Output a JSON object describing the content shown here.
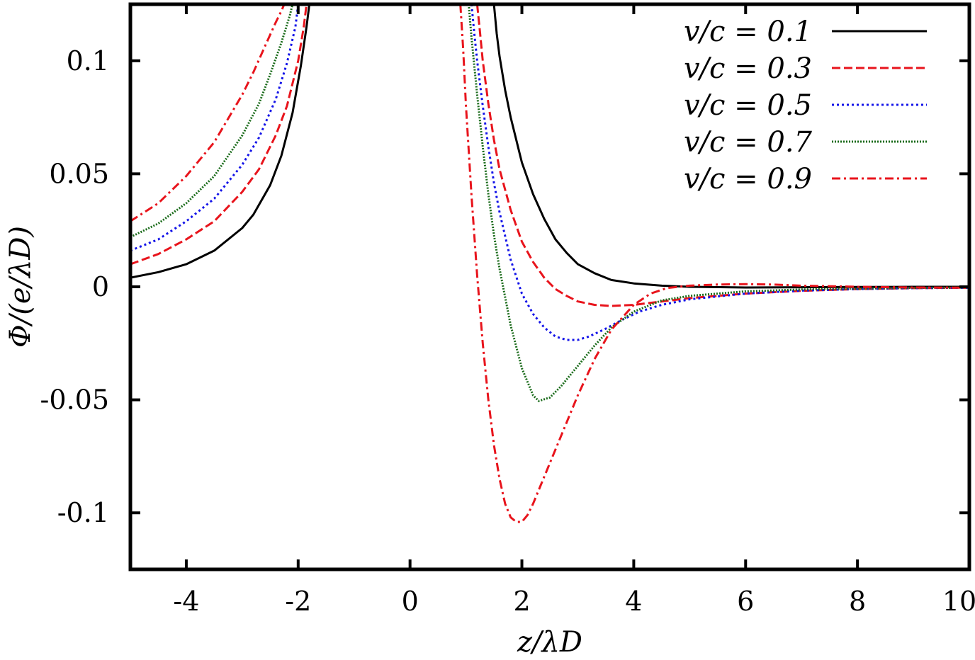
{
  "chart_data": {
    "type": "line",
    "title": "",
    "xlabel": "z/λD",
    "ylabel": "Φ/(e/λD)",
    "xlim": [
      -5,
      10
    ],
    "ylim": [
      -0.125,
      0.125
    ],
    "xticks": [
      -4,
      -2,
      0,
      2,
      4,
      6,
      8,
      10
    ],
    "xtick_labels": [
      "-4",
      "-2",
      "0",
      "2",
      "4",
      "6",
      "8",
      "10"
    ],
    "yticks": [
      0.1,
      0.05,
      0,
      -0.05,
      -0.1
    ],
    "ytick_labels": [
      "0.1",
      "0.05",
      "0",
      "-0.05",
      "-0.1"
    ],
    "grid": false,
    "legend_position": "top-right",
    "series": [
      {
        "name": "v/c = 0.1",
        "color": "#000000",
        "dash": "solid",
        "x": [
          -5.0,
          -4.5,
          -4.0,
          -3.5,
          -3.0,
          -2.8,
          -2.5,
          -2.3,
          -2.1,
          -1.95,
          -1.85,
          -1.8,
          1.5,
          1.55,
          1.6,
          1.7,
          1.8,
          2.0,
          2.2,
          2.4,
          2.6,
          2.8,
          3.0,
          3.3,
          3.6,
          4.0,
          4.5,
          5.0,
          6.0,
          7.0,
          8.0,
          9.0,
          10.0
        ],
        "y": [
          0.004,
          0.0065,
          0.01,
          0.016,
          0.026,
          0.032,
          0.045,
          0.058,
          0.077,
          0.098,
          0.115,
          0.125,
          0.125,
          0.112,
          0.102,
          0.087,
          0.075,
          0.055,
          0.041,
          0.03,
          0.021,
          0.015,
          0.01,
          0.006,
          0.003,
          0.0015,
          0.0005,
          0.0,
          -0.0003,
          -0.0002,
          -0.0001,
          0.0,
          0.0
        ]
      },
      {
        "name": "v/c = 0.3",
        "color": "#e8141c",
        "dash": "dashed",
        "x": [
          -5.0,
          -4.5,
          -4.0,
          -3.5,
          -3.0,
          -2.7,
          -2.4,
          -2.2,
          -2.0,
          -1.9,
          -1.85,
          1.2,
          1.25,
          1.3,
          1.4,
          1.5,
          1.6,
          1.8,
          2.0,
          2.2,
          2.4,
          2.6,
          2.8,
          3.0,
          3.3,
          3.6,
          4.0,
          4.5,
          5.0,
          6.0,
          7.0,
          8.0,
          9.0,
          10.0
        ],
        "y": [
          0.01,
          0.0145,
          0.021,
          0.029,
          0.042,
          0.052,
          0.067,
          0.08,
          0.1,
          0.115,
          0.125,
          0.125,
          0.113,
          0.1,
          0.081,
          0.065,
          0.052,
          0.034,
          0.02,
          0.011,
          0.004,
          -0.001,
          -0.004,
          -0.0065,
          -0.008,
          -0.0085,
          -0.008,
          -0.0065,
          -0.005,
          -0.003,
          -0.0018,
          -0.001,
          -0.0006,
          -0.0004
        ]
      },
      {
        "name": "v/c = 0.5",
        "color": "#1414e8",
        "dash": "dotted",
        "x": [
          -5.0,
          -4.5,
          -4.0,
          -3.5,
          -3.0,
          -2.7,
          -2.4,
          -2.2,
          -2.05,
          -2.0,
          1.1,
          1.15,
          1.2,
          1.3,
          1.4,
          1.5,
          1.6,
          1.8,
          2.0,
          2.2,
          2.4,
          2.6,
          2.8,
          3.0,
          3.2,
          3.5,
          3.8,
          4.1,
          4.5,
          5.0,
          6.0,
          7.0,
          8.0,
          9.0,
          10.0
        ],
        "y": [
          0.016,
          0.021,
          0.029,
          0.039,
          0.054,
          0.066,
          0.083,
          0.099,
          0.115,
          0.125,
          0.125,
          0.112,
          0.1,
          0.08,
          0.062,
          0.046,
          0.033,
          0.012,
          -0.003,
          -0.012,
          -0.018,
          -0.022,
          -0.0235,
          -0.0235,
          -0.022,
          -0.0185,
          -0.0145,
          -0.011,
          -0.008,
          -0.0055,
          -0.003,
          -0.0017,
          -0.001,
          -0.0006,
          -0.0004
        ]
      },
      {
        "name": "v/c = 0.7",
        "color": "#1a6b1a",
        "dash": "dense-dotted",
        "x": [
          -5.0,
          -4.5,
          -4.0,
          -3.5,
          -3.0,
          -2.7,
          -2.5,
          -2.3,
          -2.15,
          -2.1,
          1.05,
          1.1,
          1.2,
          1.3,
          1.4,
          1.5,
          1.6,
          1.8,
          2.0,
          2.2,
          2.3,
          2.5,
          2.7,
          3.0,
          3.3,
          3.6,
          4.0,
          4.5,
          5.0,
          6.0,
          7.0,
          8.0,
          9.0,
          10.0
        ],
        "y": [
          0.022,
          0.028,
          0.037,
          0.049,
          0.067,
          0.081,
          0.094,
          0.108,
          0.12,
          0.125,
          0.125,
          0.11,
          0.085,
          0.062,
          0.041,
          0.023,
          0.008,
          -0.017,
          -0.036,
          -0.048,
          -0.0505,
          -0.049,
          -0.044,
          -0.035,
          -0.026,
          -0.018,
          -0.011,
          -0.006,
          -0.004,
          -0.002,
          -0.0012,
          -0.0008,
          -0.0005,
          -0.0003
        ]
      },
      {
        "name": "v/c = 0.9",
        "color": "#e8141c",
        "dash": "dash-dot",
        "x": [
          -5.0,
          -4.5,
          -4.0,
          -3.5,
          -3.0,
          -2.8,
          -2.6,
          -2.4,
          -2.3,
          -2.25,
          0.9,
          0.95,
          1.0,
          1.1,
          1.2,
          1.3,
          1.4,
          1.5,
          1.6,
          1.7,
          1.8,
          1.9,
          2.0,
          2.1,
          2.2,
          2.4,
          2.7,
          3.0,
          3.3,
          3.6,
          4.0,
          4.3,
          4.6,
          5.0,
          5.5,
          6.0,
          6.5,
          7.0,
          8.0,
          9.0,
          10.0
        ],
        "y": [
          0.029,
          0.037,
          0.049,
          0.064,
          0.085,
          0.095,
          0.106,
          0.117,
          0.122,
          0.125,
          0.125,
          0.105,
          0.08,
          0.04,
          0.005,
          -0.025,
          -0.05,
          -0.07,
          -0.085,
          -0.096,
          -0.102,
          -0.104,
          -0.104,
          -0.101,
          -0.096,
          -0.084,
          -0.066,
          -0.048,
          -0.032,
          -0.019,
          -0.008,
          -0.003,
          -0.0005,
          0.0005,
          0.001,
          0.0012,
          0.001,
          0.0005,
          0.0,
          -0.0003,
          -0.0004
        ]
      }
    ]
  }
}
